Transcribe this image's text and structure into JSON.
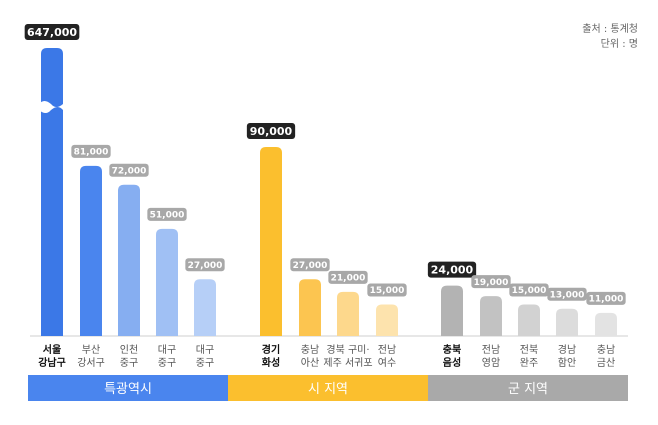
{
  "source_note": {
    "line1": "출처 : 통계청",
    "line2": "단위 : 명"
  },
  "colors": {
    "group1_highlight": "#3b78e7",
    "group1_bars": [
      "#3b78e7",
      "#4a85ee",
      "#86aef1",
      "#a0c0f4",
      "#b6cff7"
    ],
    "group2_bars": [
      "#fbbf2e",
      "#fcc550",
      "#fdd88c",
      "#fde3ad"
    ],
    "group3_bars": [
      "#b3b3b3",
      "#c2c2c2",
      "#d2d2d2",
      "#dcdcdc",
      "#e3e3e3"
    ],
    "label_dark": "#222222",
    "label_light": "#a8a8a8",
    "band_group1": "#4a85ee",
    "band_group2": "#fbbf2e",
    "band_group3": "#a9a9a9"
  },
  "chart_data": {
    "type": "bar",
    "axis_break": "first bar (647,000) is truncated with a wavy break mark",
    "groups": [
      {
        "name": "특광역시",
        "bars": [
          {
            "label_line1": "서울",
            "label_line2": "강남구",
            "value": 647000,
            "display": "647,000",
            "highlight": true
          },
          {
            "label_line1": "부산",
            "label_line2": "강서구",
            "value": 81000,
            "display": "81,000",
            "highlight": false
          },
          {
            "label_line1": "인천",
            "label_line2": "중구",
            "value": 72000,
            "display": "72,000",
            "highlight": false
          },
          {
            "label_line1": "대구",
            "label_line2": "중구",
            "value": 51000,
            "display": "51,000",
            "highlight": false
          },
          {
            "label_line1": "대구",
            "label_line2": "중구",
            "value": 27000,
            "display": "27,000",
            "highlight": false
          }
        ]
      },
      {
        "name": "시 지역",
        "bars": [
          {
            "label_line1": "경기",
            "label_line2": "화성",
            "value": 90000,
            "display": "90,000",
            "highlight": true
          },
          {
            "label_line1": "충남",
            "label_line2": "아산",
            "value": 27000,
            "display": "27,000",
            "highlight": false
          },
          {
            "label_line1": "경북 구미·",
            "label_line2": "제주 서귀포",
            "value": 21000,
            "display": "21,000",
            "highlight": false
          },
          {
            "label_line1": "전남",
            "label_line2": "여수",
            "value": 15000,
            "display": "15,000",
            "highlight": false
          }
        ]
      },
      {
        "name": "군 지역",
        "bars": [
          {
            "label_line1": "충북",
            "label_line2": "음성",
            "value": 24000,
            "display": "24,000",
            "highlight": true
          },
          {
            "label_line1": "전남",
            "label_line2": "영암",
            "value": 19000,
            "display": "19,000",
            "highlight": false
          },
          {
            "label_line1": "전북",
            "label_line2": "완주",
            "value": 15000,
            "display": "15,000",
            "highlight": false
          },
          {
            "label_line1": "경남",
            "label_line2": "함안",
            "value": 13000,
            "display": "13,000",
            "highlight": false
          },
          {
            "label_line1": "충남",
            "label_line2": "금산",
            "value": 11000,
            "display": "11,000",
            "highlight": false
          }
        ]
      }
    ]
  }
}
